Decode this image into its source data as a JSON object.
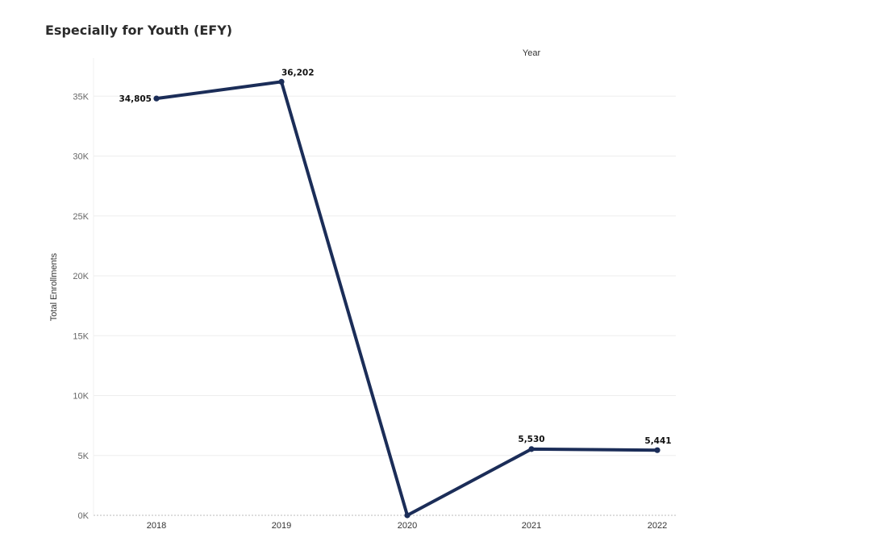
{
  "chart_data": {
    "type": "line",
    "title": "Especially for Youth (EFY)",
    "xlabel": "Year",
    "ylabel": "Total Enrollments",
    "categories": [
      "2018",
      "2019",
      "2020",
      "2021",
      "2022"
    ],
    "values": [
      34805,
      36202,
      0,
      5530,
      5441
    ],
    "data_labels": [
      "34,805",
      "36,202",
      "",
      "5,530",
      "5,441"
    ],
    "y_ticks": [
      0,
      5000,
      10000,
      15000,
      20000,
      25000,
      30000,
      35000
    ],
    "y_tick_labels": [
      "0K",
      "5K",
      "10K",
      "15K",
      "20K",
      "25K",
      "30K",
      "35K"
    ],
    "ylim": [
      0,
      38000
    ],
    "grid": true,
    "xlabel_position": "top",
    "line_color": "#1b2d58",
    "grid_color": "#eeeeee"
  }
}
